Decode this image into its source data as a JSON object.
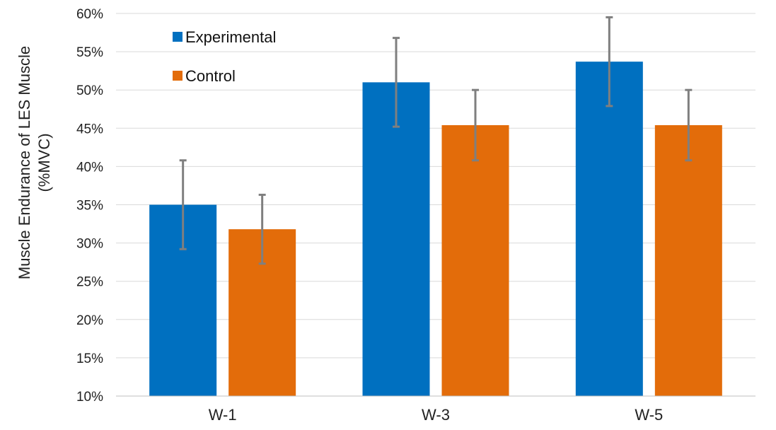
{
  "chart_data": {
    "type": "bar",
    "categories": [
      "W-1",
      "W-3",
      "W-5"
    ],
    "series": [
      {
        "name": "Experimental",
        "color": "#0070C0",
        "values": [
          35.0,
          51.0,
          53.7
        ],
        "error": [
          5.8,
          5.8,
          5.8
        ]
      },
      {
        "name": "Control",
        "color": "#E36C0A",
        "values": [
          31.8,
          45.4,
          45.4
        ],
        "error": [
          4.5,
          4.6,
          4.6
        ]
      }
    ],
    "ylabel_lines": [
      "Muscle Endurance of LES Muscle",
      "(%MVC)"
    ],
    "xlabel": "",
    "ylim": [
      10,
      60
    ],
    "yticks": [
      10,
      15,
      20,
      25,
      30,
      35,
      40,
      45,
      50,
      55,
      60
    ],
    "ytick_labels": [
      "10%",
      "15%",
      "20%",
      "25%",
      "30%",
      "35%",
      "40%",
      "45%",
      "50%",
      "55%",
      "60%"
    ],
    "grid": true,
    "legend_position": "top-left",
    "error_bar_color": "#7f7f7f"
  }
}
